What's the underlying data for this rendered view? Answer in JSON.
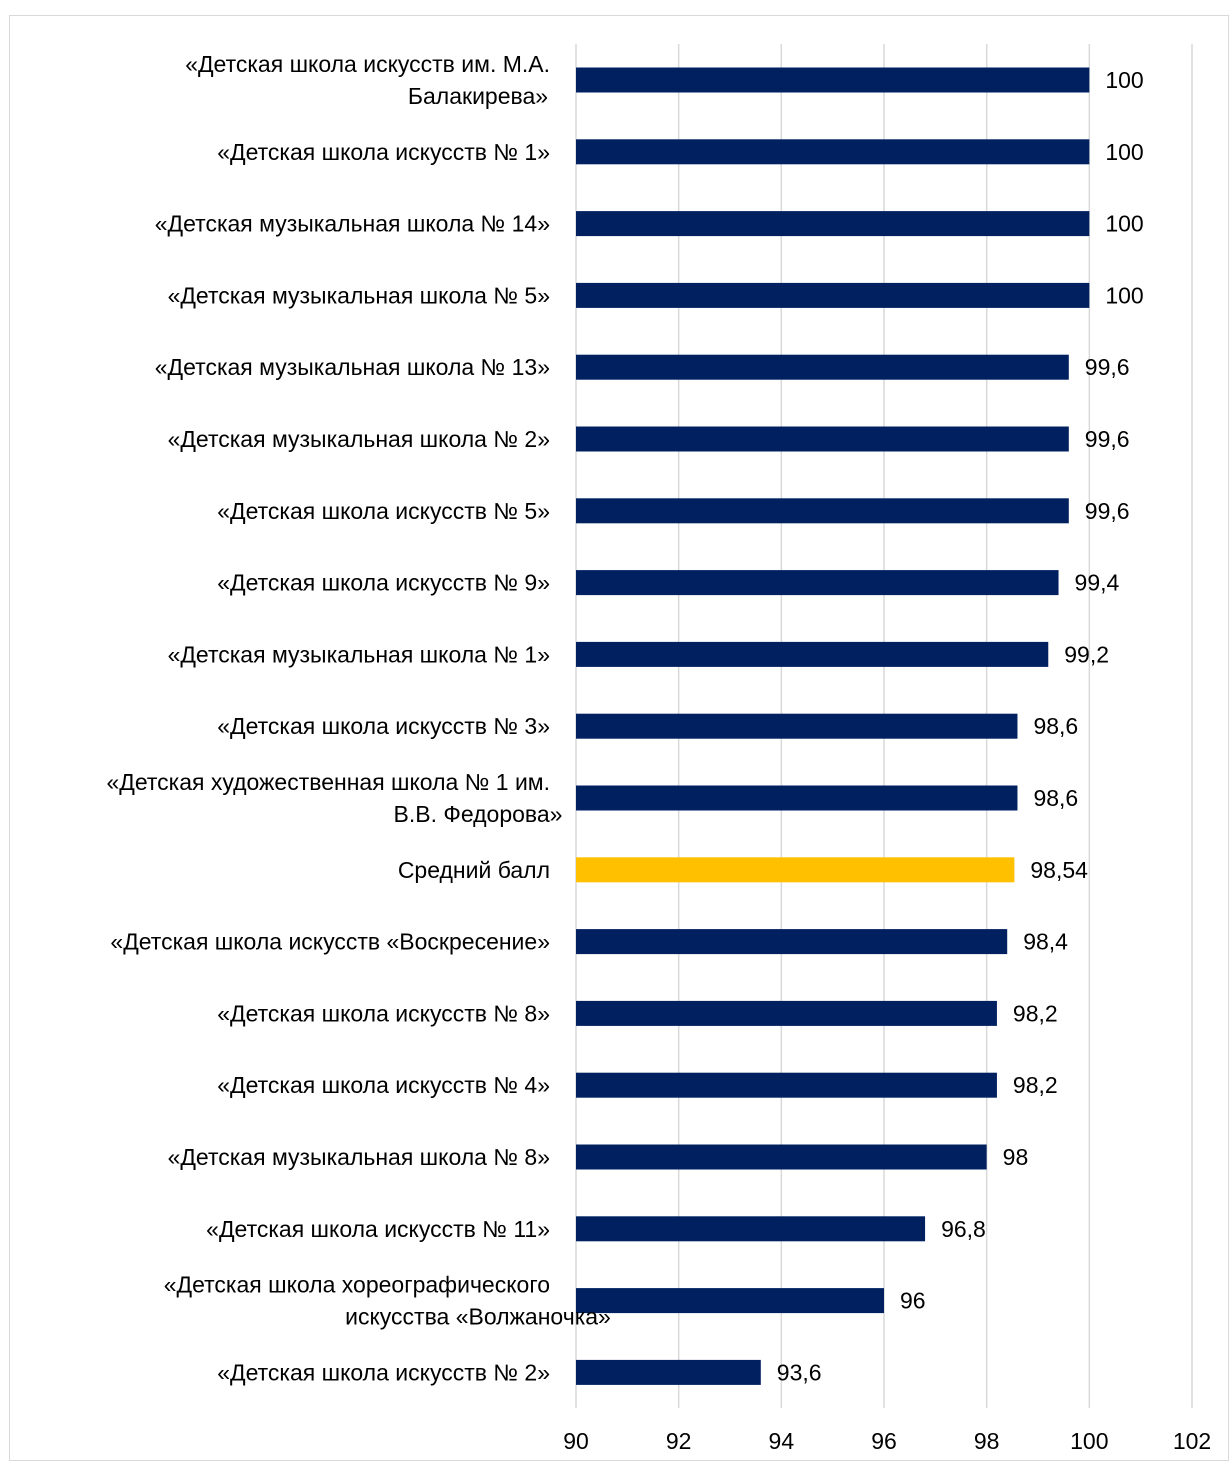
{
  "chart_data": {
    "type": "bar",
    "orientation": "horizontal",
    "title": "",
    "xlabel": "",
    "ylabel": "",
    "xlim": [
      90,
      102
    ],
    "x_ticks": [
      {
        "value": 90,
        "label": "90"
      },
      {
        "value": 92,
        "label": "92"
      },
      {
        "value": 94,
        "label": "94"
      },
      {
        "value": 96,
        "label": "96"
      },
      {
        "value": 98,
        "label": "98"
      },
      {
        "value": 100,
        "label": "100"
      },
      {
        "value": 102,
        "label": "102"
      }
    ],
    "grid": "vertical",
    "legend": "none",
    "colors": {
      "bar": "#002060",
      "highlight": "#FFC000",
      "grid": "#d9d9d9"
    },
    "bars": [
      {
        "category": [
          "«Детская школа  искусств им. М.А.",
          "Балакирева»"
        ],
        "value": 100,
        "label": "100",
        "highlight": false
      },
      {
        "category": [
          "«Детская школа  искусств № 1»"
        ],
        "value": 100,
        "label": "100",
        "highlight": false
      },
      {
        "category": [
          "«Детская музыкальная школа № 14»"
        ],
        "value": 100,
        "label": "100",
        "highlight": false
      },
      {
        "category": [
          "«Детская музыкальная школа № 5»"
        ],
        "value": 100,
        "label": "100",
        "highlight": false
      },
      {
        "category": [
          "«Детская музыкальная школа № 13»"
        ],
        "value": 99.6,
        "label": "99,6",
        "highlight": false
      },
      {
        "category": [
          "«Детская музыкальная школа № 2»"
        ],
        "value": 99.6,
        "label": "99,6",
        "highlight": false
      },
      {
        "category": [
          "«Детская школа  искусств № 5»"
        ],
        "value": 99.6,
        "label": "99,6",
        "highlight": false
      },
      {
        "category": [
          "«Детская школа искусств № 9»"
        ],
        "value": 99.4,
        "label": "99,4",
        "highlight": false
      },
      {
        "category": [
          "«Детская музыкальная школа № 1»"
        ],
        "value": 99.2,
        "label": "99,2",
        "highlight": false
      },
      {
        "category": [
          "«Детская школа искусств № 3»"
        ],
        "value": 98.6,
        "label": "98,6",
        "highlight": false
      },
      {
        "category": [
          "«Детская художественная школа № 1 им.",
          "В.В. Федорова»"
        ],
        "value": 98.6,
        "label": "98,6",
        "highlight": false
      },
      {
        "category": [
          "Средний балл"
        ],
        "value": 98.54,
        "label": "98,54",
        "highlight": true
      },
      {
        "category": [
          "«Детская школа искусств «Воскресение»"
        ],
        "value": 98.4,
        "label": "98,4",
        "highlight": false
      },
      {
        "category": [
          "«Детская школа искусств № 8»"
        ],
        "value": 98.2,
        "label": "98,2",
        "highlight": false
      },
      {
        "category": [
          "«Детская школа  искусств № 4»"
        ],
        "value": 98.2,
        "label": "98,2",
        "highlight": false
      },
      {
        "category": [
          "«Детская музыкальная школа № 8»"
        ],
        "value": 98,
        "label": "98",
        "highlight": false
      },
      {
        "category": [
          "«Детская  школа искусств № 11»"
        ],
        "value": 96.8,
        "label": "96,8",
        "highlight": false
      },
      {
        "category": [
          "«Детская школа хореографического",
          "искусства «Волжаночка»"
        ],
        "value": 96,
        "label": "96",
        "highlight": false
      },
      {
        "category": [
          "«Детская школа искусств № 2»"
        ],
        "value": 93.6,
        "label": "93,6",
        "highlight": false
      }
    ]
  }
}
